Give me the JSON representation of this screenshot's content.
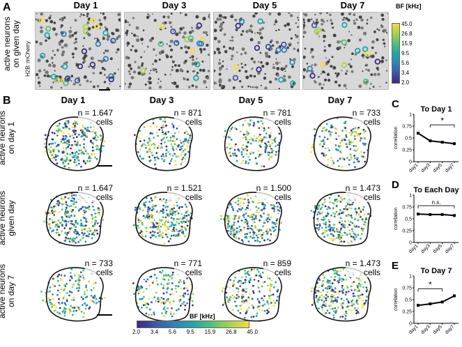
{
  "panel_a": {
    "letter": "A",
    "row_label": [
      "active neurons",
      "on given day"
    ],
    "channel_label": "H2B::mCherry",
    "days": [
      "Day 1",
      "Day 3",
      "Day 5",
      "Day 7"
    ],
    "colorbar": {
      "label": "BF [kHz]",
      "ticks": [
        "45.0",
        "26.8",
        "15.9",
        "9.5",
        "5.6",
        "3.4",
        "2.0"
      ]
    }
  },
  "panel_b": {
    "letter": "B",
    "days": [
      "Day 1",
      "Day 3",
      "Day 5",
      "Day 7"
    ],
    "rows": [
      {
        "label": [
          "active neurons",
          "on day 1"
        ],
        "counts": [
          "n = 1.647",
          "n = 871",
          "n = 781",
          "n = 733"
        ]
      },
      {
        "label": [
          "active neurons",
          "given day"
        ],
        "counts": [
          "n = 1.647",
          "n = 1.521",
          "n = 1.500",
          "n = 1.473"
        ]
      },
      {
        "label": [
          "active neurons",
          "on day 7"
        ],
        "counts": [
          "n = 733",
          "n = 771",
          "n = 859",
          "n = 1.473"
        ]
      }
    ],
    "cells_word": "cells",
    "colorbar": {
      "label": "BF [kHz]",
      "ticks": [
        "2.0",
        "3.4",
        "5.6",
        "9.5",
        "15.9",
        "26.8",
        "45.0"
      ]
    }
  },
  "palette": [
    "#3b2a84",
    "#3e56a6",
    "#2f83b8",
    "#21a6a6",
    "#52c07a",
    "#a9d34c",
    "#f4dc3a"
  ],
  "chart_data": [
    {
      "type": "line",
      "letter": "C",
      "title": "To Day 1",
      "x": [
        "day1",
        "day3",
        "day5",
        "day7"
      ],
      "values": [
        0.6,
        0.44,
        0.41,
        0.38
      ],
      "ylabel": "correlation",
      "ylim": [
        0,
        1
      ],
      "yticks": [
        "0",
        "0.25",
        "0.5",
        "0.75",
        "1"
      ],
      "annotation": "*",
      "bracket": [
        "day3",
        "day7"
      ]
    },
    {
      "type": "line",
      "letter": "D",
      "title": "To Each Day",
      "x": [
        "day1",
        "day3",
        "day5",
        "day7"
      ],
      "values": [
        0.6,
        0.59,
        0.59,
        0.57
      ],
      "ylabel": "correlation",
      "ylim": [
        0,
        1
      ],
      "yticks": [
        "0",
        "0.25",
        "0.5",
        "0.75",
        "1"
      ],
      "annotation": "n.s.",
      "bracket": [
        "day1",
        "day7"
      ]
    },
    {
      "type": "line",
      "letter": "E",
      "title": "To Day 7",
      "x": [
        "day1",
        "day3",
        "day5",
        "day7"
      ],
      "values": [
        0.38,
        0.41,
        0.45,
        0.58
      ],
      "ylabel": "correlation",
      "ylim": [
        0,
        1
      ],
      "yticks": [
        "0",
        "0.25",
        "0.5",
        "0.75",
        "1"
      ],
      "annotation": "*",
      "bracket": [
        "day1",
        "day5"
      ]
    }
  ]
}
